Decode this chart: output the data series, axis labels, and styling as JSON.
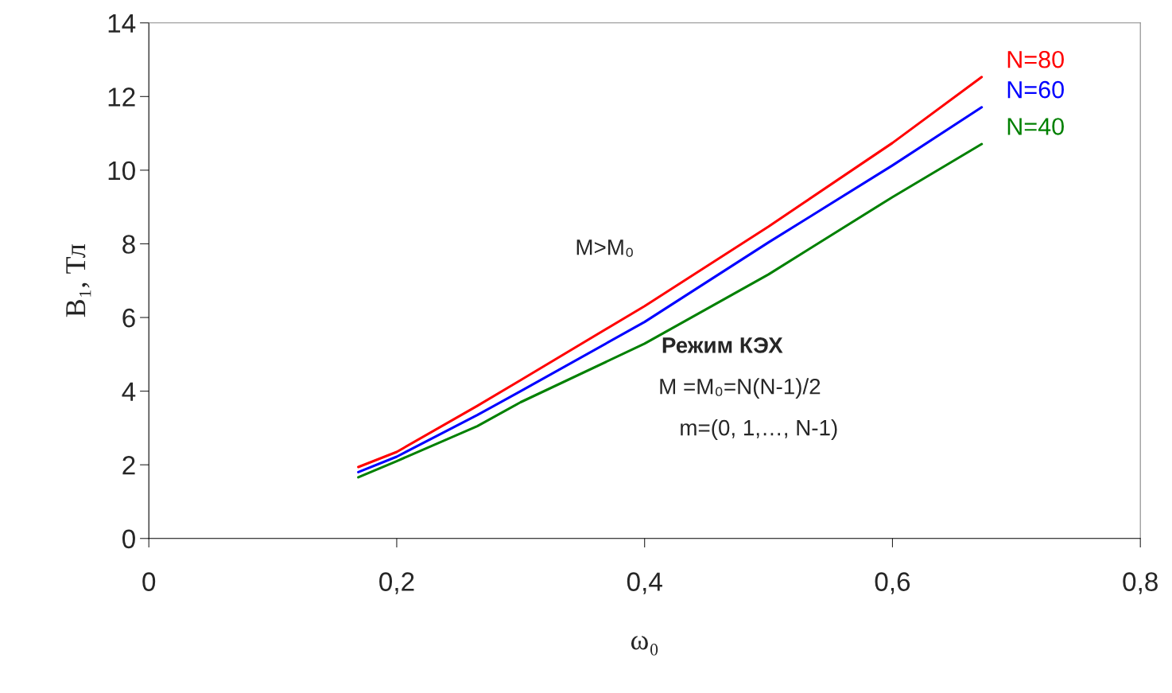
{
  "chart_data": {
    "type": "line",
    "xlabel": "ω₀",
    "ylabel": "B₁, Тл",
    "x": [
      0.169,
      0.2,
      0.265,
      0.3,
      0.4,
      0.5,
      0.6,
      0.672
    ],
    "series": [
      {
        "name": "N=80",
        "color": "#ff0000",
        "values": [
          1.94,
          2.35,
          3.6,
          4.3,
          6.31,
          8.47,
          10.74,
          12.53
        ]
      },
      {
        "name": "N=60",
        "color": "#0000ff",
        "values": [
          1.8,
          2.22,
          3.35,
          4.0,
          5.88,
          8.04,
          10.13,
          11.71
        ]
      },
      {
        "name": "N=40",
        "color": "#008000",
        "values": [
          1.66,
          2.1,
          3.05,
          3.7,
          5.29,
          7.17,
          9.27,
          10.71
        ]
      }
    ],
    "xlim": [
      0,
      0.8
    ],
    "ylim": [
      0,
      14
    ],
    "xticks": [
      0,
      {
        "value": 0.2,
        "label": "0,2"
      },
      {
        "value": 0.4,
        "label": "0,4"
      },
      {
        "value": 0.6,
        "label": "0,6"
      },
      {
        "value": 0.8,
        "label": "0,8"
      }
    ],
    "yticks": [
      0,
      2,
      4,
      6,
      8,
      10,
      12,
      14
    ],
    "annotations": [
      "M>M₀",
      "Режим КЭХ",
      "M =M₀=N(N-1)/2",
      "m=(0, 1,…, N-1)"
    ],
    "grid": false,
    "legend": "right"
  }
}
